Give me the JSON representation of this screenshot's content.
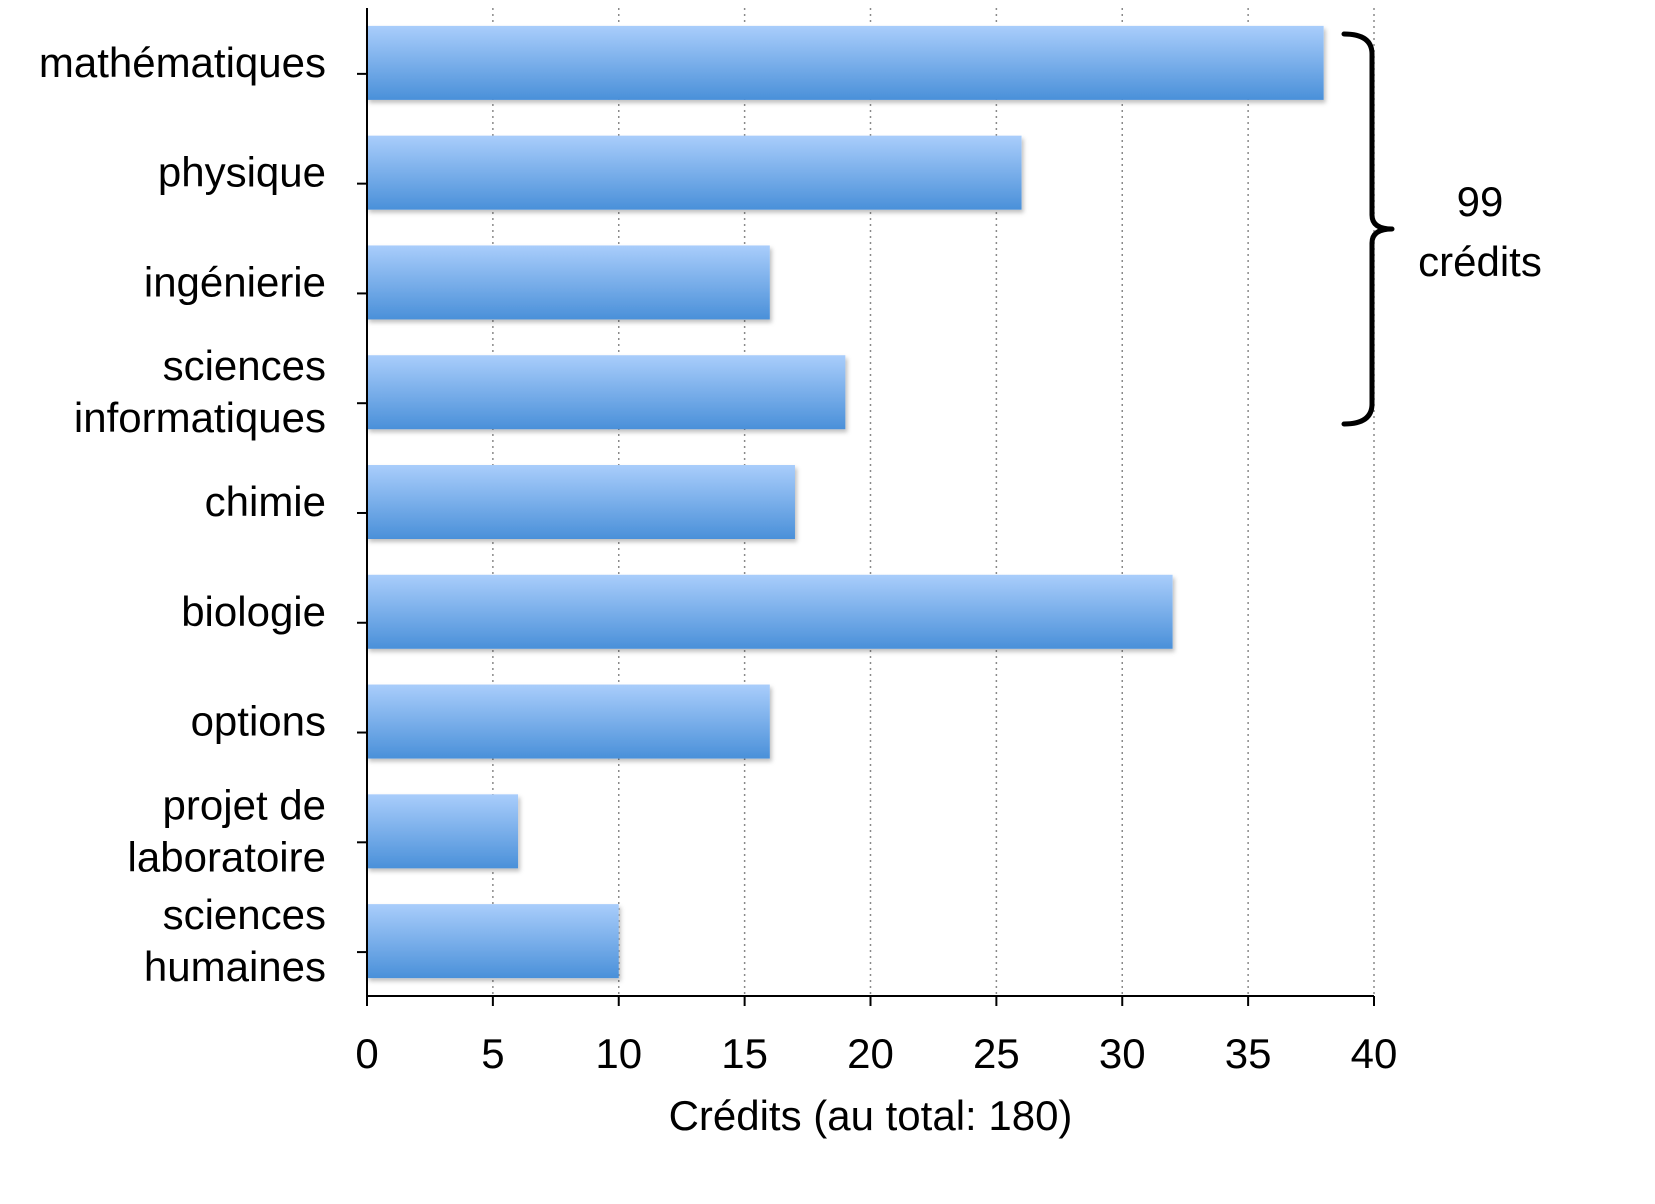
{
  "chart_data": {
    "type": "bar",
    "orientation": "horizontal",
    "categories": [
      [
        "mathématiques"
      ],
      [
        "physique"
      ],
      [
        "ingénierie"
      ],
      [
        "sciences",
        "informatiques"
      ],
      [
        "chimie"
      ],
      [
        "biologie"
      ],
      [
        "options"
      ],
      [
        "projet de",
        "laboratoire"
      ],
      [
        "sciences",
        "humaines"
      ]
    ],
    "values": [
      38,
      26,
      16,
      19,
      17,
      32,
      16,
      6,
      10
    ],
    "xlabel": "Crédits (au total: 180)",
    "ylabel": "",
    "title": "",
    "xlim": [
      0,
      40
    ],
    "xticks": [
      "0",
      "5",
      "10",
      "15",
      "20",
      "25",
      "30",
      "35",
      "40"
    ],
    "grid": "vertical-dotted",
    "bar_color_top": "#a9cdfb",
    "bar_color_bottom": "#4a90d9",
    "annotation": {
      "lines": [
        "99",
        "crédits"
      ],
      "bracket_spans": [
        "mathématiques",
        "sciences informatiques"
      ]
    }
  }
}
